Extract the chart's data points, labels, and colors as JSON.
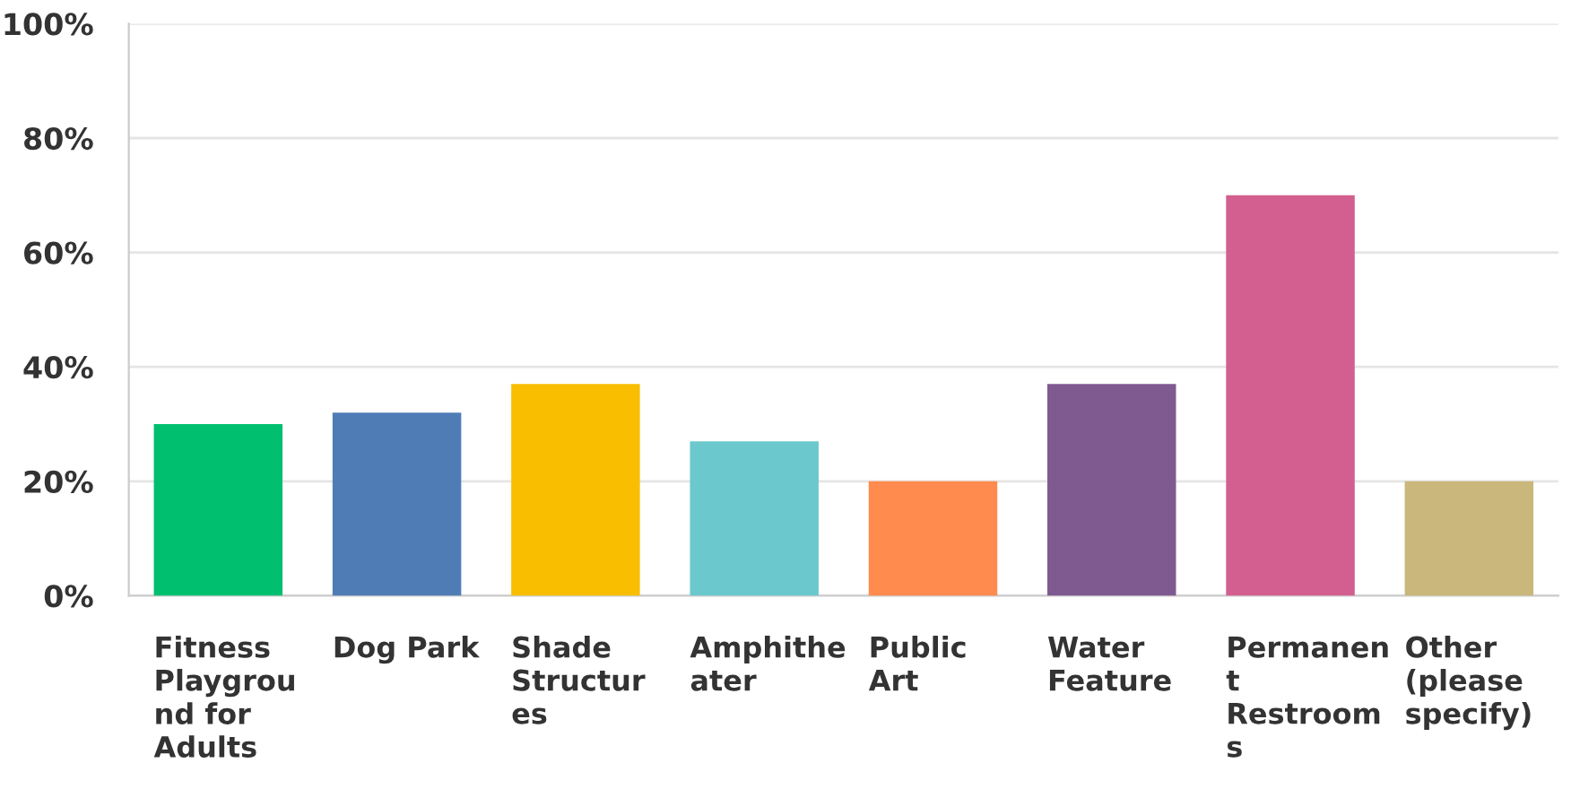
{
  "chart_data": {
    "type": "bar",
    "categories": [
      "Fitness Playground for Adults",
      "Dog Park",
      "Shade Structures",
      "Amphitheater",
      "Public Art",
      "Water Feature",
      "Permanent Restrooms",
      "Other (please specify)"
    ],
    "values": [
      30,
      32,
      37,
      27,
      20,
      37,
      70,
      20
    ],
    "colors": [
      "#00bf6f",
      "#507cb6",
      "#f9be00",
      "#6bc8cd",
      "#ff8b4f",
      "#7f5a91",
      "#d25f90",
      "#c9b77b"
    ],
    "ylim": [
      0,
      100
    ],
    "yticks": [
      {
        "value": 0,
        "label": "0%"
      },
      {
        "value": 20,
        "label": "20%"
      },
      {
        "value": 40,
        "label": "40%"
      },
      {
        "value": 60,
        "label": "60%"
      },
      {
        "value": 80,
        "label": "80%"
      },
      {
        "value": 100,
        "label": "100%"
      }
    ],
    "grid": "y"
  }
}
